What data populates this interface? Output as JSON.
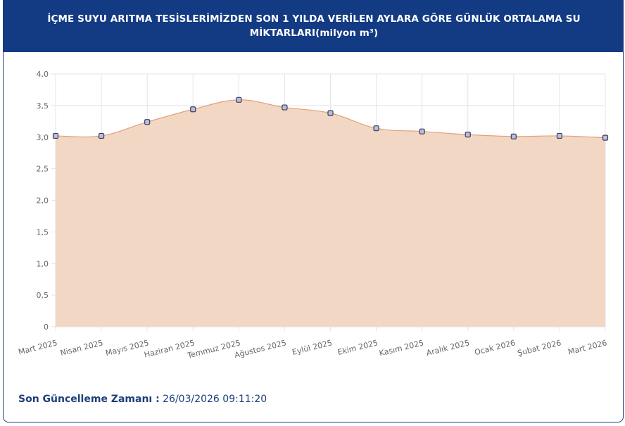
{
  "header": {
    "title": "İÇME SUYU ARITMA TESİSLERİMİZDEN SON 1 YILDA VERİLEN AYLARA GÖRE GÜNLÜK ORTALAMA SU MİKTARLARI(milyon m³)"
  },
  "footer": {
    "label": "Son Güncelleme Zamanı :",
    "value": "26/03/2026 09:11:20"
  },
  "colors": {
    "header_bg": "#133b84",
    "area_fill": "#f2d7c5",
    "line": "#e2a077",
    "point_fill": "#b9bed9",
    "point_stroke": "#3b3b5c",
    "footer_text": "#1d3f7a"
  },
  "chart_data": {
    "type": "area",
    "categories": [
      "Mart 2025",
      "Nisan 2025",
      "Mayıs 2025",
      "Haziran 2025",
      "Temmuz 2025",
      "Ağustos 2025",
      "Eylül 2025",
      "Ekim 2025",
      "Kasım 2025",
      "Aralık 2025",
      "Ocak 2026",
      "Şubat 2026",
      "Mart 2026"
    ],
    "values": [
      3.02,
      3.02,
      3.24,
      3.44,
      3.59,
      3.47,
      3.38,
      3.14,
      3.09,
      3.04,
      3.01,
      3.02,
      2.99
    ],
    "y_ticks": [
      "0",
      "0,5",
      "1,0",
      "1,5",
      "2,0",
      "2,5",
      "3,0",
      "3,5",
      "4,0"
    ],
    "ylim": [
      0,
      4
    ],
    "grid": true,
    "legend": "none"
  }
}
